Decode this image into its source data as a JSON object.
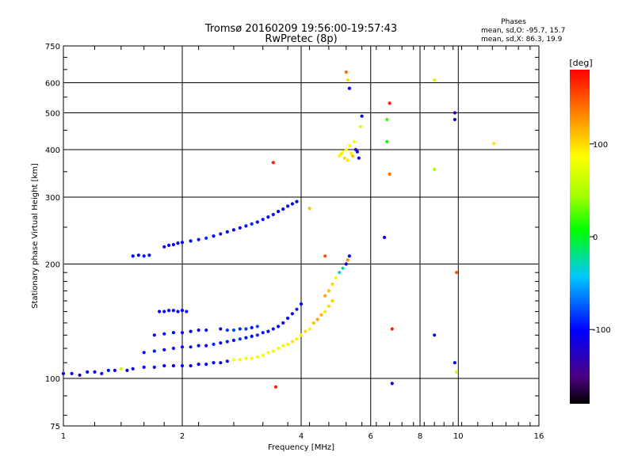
{
  "chart_data": {
    "type": "scatter",
    "title": "Tromsø 20160209 19:56:00-19:57:43",
    "subtitle": "RwPretec (8p)",
    "phases_box": {
      "heading": "Phases",
      "line1": "mean, sd,O: -95.7, 15.7",
      "line2": "mean, sd,X:  86.3, 19.9"
    },
    "xlabel": "Frequency [MHz]",
    "ylabel": "Stationary phase Virtual Height [km]",
    "x_scale": "log",
    "y_scale": "log",
    "xlim": [
      1,
      16
    ],
    "ylim": [
      75,
      750
    ],
    "xticks": [
      1,
      2,
      4,
      6,
      8,
      10,
      16
    ],
    "xtick_labels": [
      "1",
      "2",
      "4",
      "6",
      "8",
      "10",
      "16"
    ],
    "yticks": [
      75,
      100,
      200,
      300,
      400,
      500,
      600,
      750
    ],
    "ytick_labels": [
      "75",
      "100",
      "200",
      "300",
      "400",
      "500",
      "600",
      "750"
    ],
    "grid": true,
    "colorbar": {
      "label": "[deg]",
      "min": -180,
      "max": 180,
      "ticks": [
        100,
        0,
        -100
      ],
      "tick_labels": [
        "100",
        "0",
        "-100"
      ]
    },
    "series": [
      {
        "points": [
          [
            1.0,
            103,
            -110
          ],
          [
            1.05,
            103,
            -110
          ],
          [
            1.1,
            102,
            -115
          ],
          [
            1.15,
            104,
            -105
          ],
          [
            1.2,
            104,
            -110
          ],
          [
            1.25,
            103,
            -100
          ],
          [
            1.3,
            105,
            -95
          ],
          [
            1.35,
            105,
            -110
          ],
          [
            1.4,
            106,
            60
          ],
          [
            1.45,
            105,
            -110
          ],
          [
            1.5,
            106,
            -105
          ],
          [
            1.6,
            107,
            -100
          ],
          [
            1.7,
            107,
            -110
          ],
          [
            1.8,
            108,
            -105
          ],
          [
            1.9,
            108,
            -110
          ],
          [
            2.0,
            108,
            -100
          ],
          [
            2.1,
            108,
            -110
          ],
          [
            2.2,
            109,
            -105
          ],
          [
            2.3,
            109,
            -100
          ],
          [
            2.4,
            110,
            -110
          ],
          [
            2.5,
            110,
            -105
          ],
          [
            2.6,
            111,
            -100
          ],
          [
            2.7,
            112,
            85
          ],
          [
            2.8,
            112,
            90
          ],
          [
            2.9,
            113,
            80
          ],
          [
            3.0,
            113,
            90
          ],
          [
            3.1,
            114,
            85
          ],
          [
            3.2,
            115,
            85
          ],
          [
            3.3,
            117,
            80
          ],
          [
            3.4,
            118,
            90
          ],
          [
            3.5,
            120,
            85
          ],
          [
            3.6,
            122,
            90
          ],
          [
            3.7,
            123,
            80
          ],
          [
            3.8,
            125,
            95
          ],
          [
            3.9,
            127,
            90
          ],
          [
            4.0,
            130,
            95
          ],
          [
            4.1,
            133,
            100
          ],
          [
            4.2,
            135,
            90
          ],
          [
            4.3,
            140,
            110
          ],
          [
            4.4,
            143,
            120
          ],
          [
            4.5,
            147,
            115
          ],
          [
            4.6,
            150,
            95
          ],
          [
            4.7,
            155,
            100
          ],
          [
            4.8,
            160,
            105
          ]
        ]
      },
      {
        "points": [
          [
            1.6,
            117,
            -100
          ],
          [
            1.7,
            118,
            -95
          ],
          [
            1.8,
            119,
            -110
          ],
          [
            1.9,
            120,
            -100
          ],
          [
            2.0,
            121,
            -105
          ],
          [
            2.1,
            121,
            -95
          ],
          [
            2.2,
            122,
            -100
          ],
          [
            2.3,
            122,
            -110
          ],
          [
            2.4,
            123,
            -90
          ],
          [
            2.5,
            124,
            -100
          ],
          [
            2.6,
            125,
            -95
          ],
          [
            2.7,
            126,
            -100
          ],
          [
            2.8,
            127,
            -85
          ],
          [
            2.9,
            128,
            -95
          ],
          [
            3.0,
            129,
            -100
          ],
          [
            3.1,
            130,
            -90
          ],
          [
            3.2,
            132,
            -95
          ],
          [
            3.3,
            133,
            -100
          ],
          [
            3.4,
            135,
            -95
          ],
          [
            3.5,
            137,
            -100
          ],
          [
            3.6,
            140,
            -110
          ],
          [
            3.7,
            144,
            -95
          ],
          [
            3.8,
            148,
            -100
          ],
          [
            3.9,
            152,
            -90
          ],
          [
            4.0,
            157,
            -100
          ]
        ]
      },
      {
        "points": [
          [
            1.7,
            130,
            -100
          ],
          [
            1.8,
            131,
            -95
          ],
          [
            1.9,
            132,
            -100
          ],
          [
            2.0,
            132,
            -110
          ],
          [
            2.1,
            133,
            -100
          ],
          [
            2.2,
            134,
            -105
          ],
          [
            2.3,
            134,
            -95
          ],
          [
            2.5,
            135,
            -100
          ],
          [
            2.6,
            134,
            -85
          ],
          [
            2.7,
            134,
            -80
          ],
          [
            2.8,
            135,
            -90
          ],
          [
            2.9,
            135,
            -85
          ],
          [
            3.0,
            136,
            -95
          ],
          [
            3.1,
            137,
            -80
          ]
        ]
      },
      {
        "points": [
          [
            1.75,
            150,
            -105
          ],
          [
            1.8,
            150,
            -100
          ],
          [
            1.85,
            151,
            -110
          ],
          [
            1.9,
            151,
            -100
          ],
          [
            1.95,
            150,
            -105
          ],
          [
            2.0,
            151,
            -100
          ],
          [
            2.05,
            150,
            -95
          ]
        ]
      },
      {
        "points": [
          [
            1.5,
            210,
            -100
          ],
          [
            1.55,
            211,
            -105
          ],
          [
            1.6,
            210,
            -95
          ],
          [
            1.65,
            211,
            -100
          ],
          [
            1.8,
            222,
            -105
          ],
          [
            1.85,
            224,
            -100
          ],
          [
            1.9,
            225,
            -110
          ],
          [
            1.95,
            227,
            -100
          ],
          [
            2.0,
            228,
            -105
          ],
          [
            2.1,
            230,
            -100
          ],
          [
            2.2,
            232,
            -95
          ],
          [
            2.3,
            234,
            -90
          ],
          [
            2.4,
            237,
            -100
          ],
          [
            2.5,
            240,
            -95
          ],
          [
            2.6,
            243,
            -100
          ],
          [
            2.7,
            246,
            -105
          ],
          [
            2.8,
            249,
            -100
          ],
          [
            2.9,
            252,
            -95
          ],
          [
            3.0,
            255,
            -90
          ],
          [
            3.1,
            258,
            -100
          ],
          [
            3.2,
            262,
            -95
          ],
          [
            3.3,
            266,
            -100
          ],
          [
            3.4,
            270,
            -95
          ],
          [
            3.5,
            275,
            -105
          ],
          [
            3.6,
            279,
            -100
          ],
          [
            3.7,
            284,
            -95
          ],
          [
            3.8,
            288,
            -110
          ],
          [
            3.9,
            292,
            -100
          ]
        ]
      },
      {
        "points": [
          [
            4.6,
            165,
            120
          ],
          [
            4.7,
            170,
            110
          ],
          [
            4.8,
            177,
            100
          ],
          [
            4.9,
            184,
            90
          ],
          [
            5.0,
            190,
            -30
          ],
          [
            5.1,
            195,
            -20
          ],
          [
            5.2,
            200,
            -110
          ],
          [
            5.25,
            205,
            130
          ],
          [
            5.3,
            210,
            -100
          ]
        ]
      },
      {
        "points": [
          [
            5.0,
            385,
            90
          ],
          [
            5.05,
            390,
            95
          ],
          [
            5.1,
            395,
            85
          ],
          [
            5.15,
            380,
            100
          ],
          [
            5.2,
            400,
            90
          ],
          [
            5.25,
            375,
            95
          ],
          [
            5.3,
            410,
            85
          ],
          [
            5.35,
            392,
            90
          ],
          [
            5.4,
            385,
            110
          ],
          [
            5.45,
            420,
            80
          ],
          [
            5.5,
            400,
            -120
          ],
          [
            5.55,
            395,
            -110
          ],
          [
            5.6,
            380,
            -100
          ],
          [
            5.65,
            460,
            70
          ],
          [
            5.7,
            490,
            -100
          ],
          [
            5.2,
            640,
            140
          ],
          [
            5.25,
            610,
            100
          ],
          [
            5.3,
            580,
            -100
          ]
        ]
      },
      {
        "points": [
          [
            3.4,
            370,
            170
          ],
          [
            3.45,
            95,
            170
          ],
          [
            6.7,
            530,
            170
          ],
          [
            6.7,
            345,
            140
          ],
          [
            6.6,
            480,
            20
          ],
          [
            6.6,
            420,
            10
          ],
          [
            6.5,
            235,
            -110
          ],
          [
            6.8,
            97,
            -110
          ],
          [
            8.7,
            610,
            60
          ],
          [
            8.7,
            355,
            50
          ],
          [
            8.7,
            130,
            -100
          ],
          [
            9.8,
            500,
            -140
          ],
          [
            9.8,
            480,
            -130
          ],
          [
            9.8,
            110,
            -100
          ],
          [
            9.9,
            104,
            60
          ],
          [
            9.9,
            190,
            150
          ],
          [
            12.3,
            415,
            95
          ],
          [
            4.2,
            280,
            110
          ],
          [
            4.6,
            210,
            150
          ],
          [
            6.8,
            135,
            170
          ]
        ]
      }
    ]
  }
}
